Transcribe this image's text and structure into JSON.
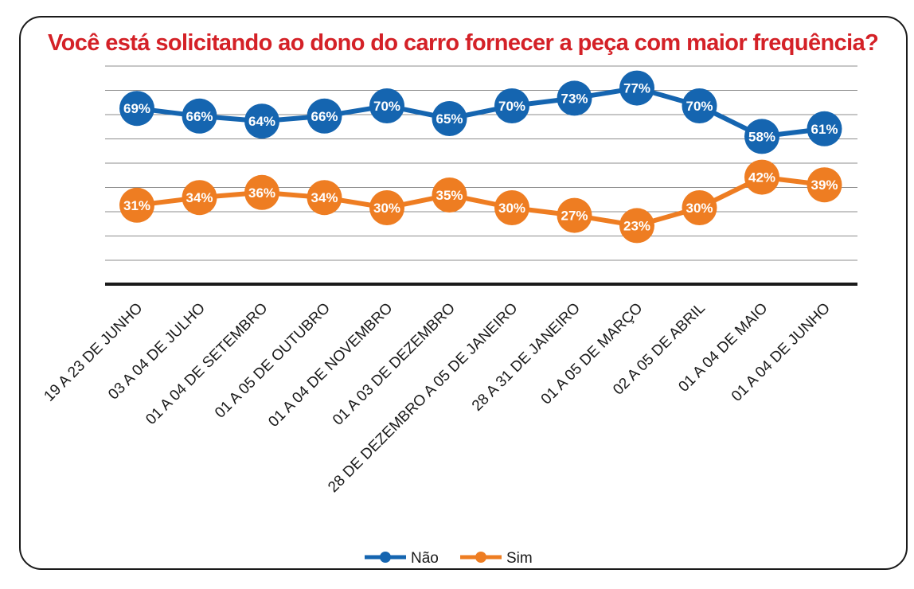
{
  "chart_data": {
    "type": "line",
    "title": "Você está solicitando ao dono do carro fornecer a peça com maior frequência?",
    "categories": [
      "19 A 23 DE JUNHO",
      "03 A 04 DE JULHO",
      "01 A 04 DE SETEMBRO",
      "01 A 05 DE OUTUBRO",
      "01 A 04 DE NOVEMBRO",
      "01 A 03 DE DEZEMBRO",
      "28 DE DEZEMBRO A 05 DE JANEIRO",
      "28 A 31 DE JANEIRO",
      "01 A 05 DE MARÇO",
      "02 A 05 DE ABRIL",
      "01 A 04 DE MAIO",
      "01 A 04 DE JUNHO"
    ],
    "series": [
      {
        "name": "Não",
        "color": "#1565b0",
        "values": [
          69,
          66,
          64,
          66,
          70,
          65,
          70,
          73,
          77,
          70,
          58,
          61
        ],
        "labels": [
          "69%",
          "66%",
          "64%",
          "66%",
          "70%",
          "65%",
          "70%",
          "73%",
          "77%",
          "70%",
          "58%",
          "61%"
        ]
      },
      {
        "name": "Sim",
        "color": "#ee7d22",
        "values": [
          31,
          34,
          36,
          34,
          30,
          35,
          30,
          27,
          23,
          30,
          42,
          39
        ],
        "labels": [
          "31%",
          "34%",
          "36%",
          "34%",
          "30%",
          "35%",
          "30%",
          "27%",
          "23%",
          "30%",
          "42%",
          "39%"
        ]
      }
    ],
    "ylim": [
      0,
      85
    ],
    "grid": true,
    "legend": "bottom",
    "xlabel": "",
    "ylabel": ""
  }
}
